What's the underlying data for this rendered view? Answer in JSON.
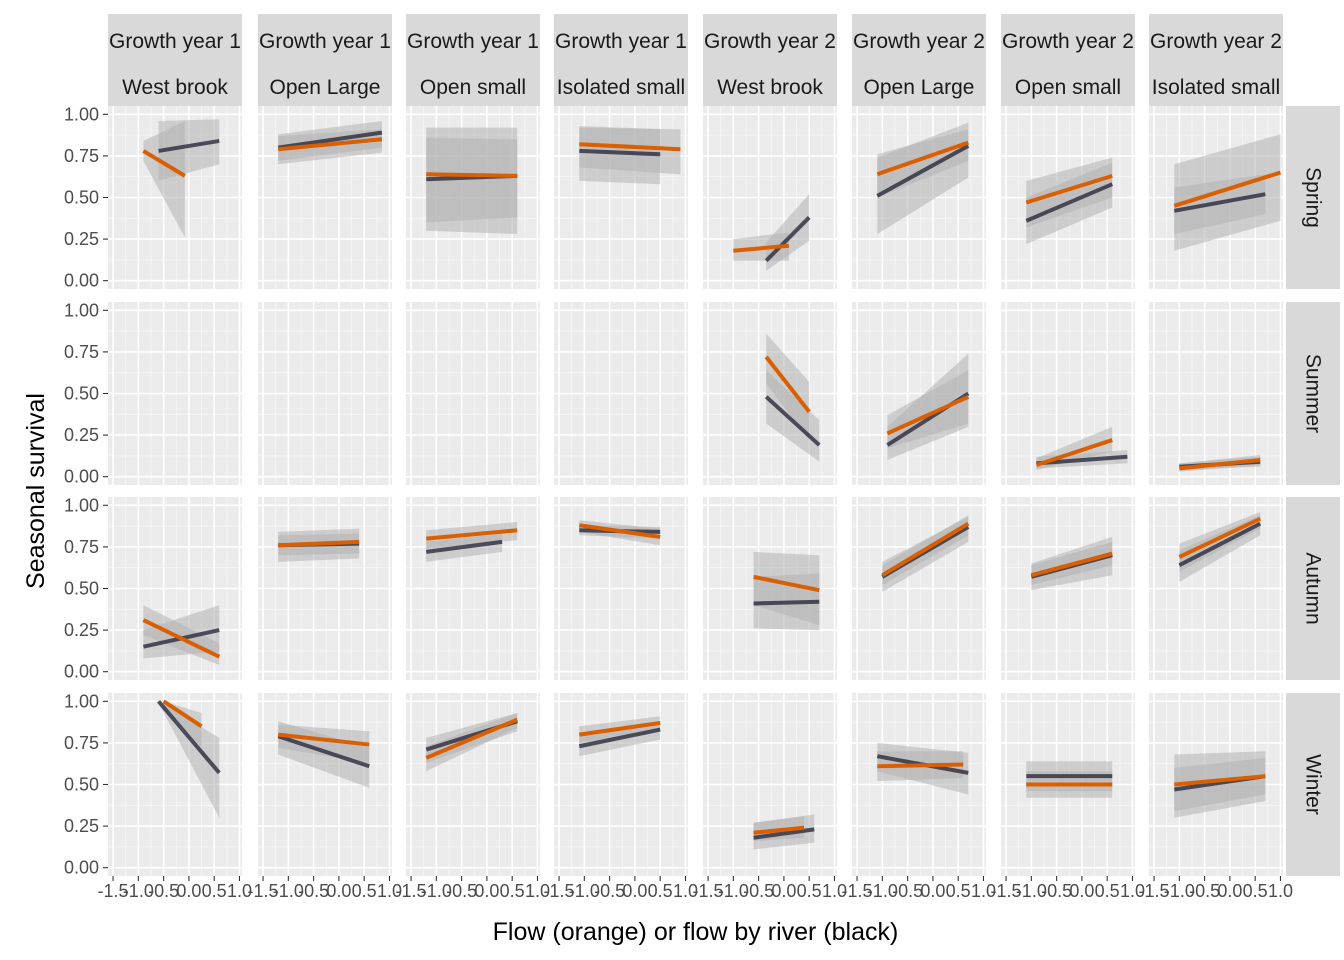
{
  "chart_data": {
    "type": "line",
    "xlabel": "Flow (orange) or flow by river (black)",
    "ylabel": "Seasonal survival",
    "xlim": [
      -1.6,
      1.05
    ],
    "ylim": [
      -0.05,
      1.05
    ],
    "x_ticks": [
      -1.5,
      -1.0,
      -0.5,
      0.0,
      0.5,
      1.0
    ],
    "x_tick_labels": [
      "-1.5",
      "-1.0",
      "-0.5",
      "0.0",
      "0.5",
      "1.0"
    ],
    "y_ticks": [
      0.0,
      0.25,
      0.5,
      0.75,
      1.0
    ],
    "y_tick_labels": [
      "0.00",
      "0.25",
      "0.50",
      "0.75",
      "1.00"
    ],
    "grid": true,
    "colors": {
      "flow": "#d95f02",
      "flow_by_river": "#1f1f33",
      "panel_bg": "#ebebeb",
      "strip_bg": "#d9d9d9",
      "ribbon": "#b3b3b3"
    },
    "columns": [
      {
        "top": "Growth year 1",
        "bottom": "West brook"
      },
      {
        "top": "Growth year 1",
        "bottom": "Open Large"
      },
      {
        "top": "Growth year 1",
        "bottom": "Open small"
      },
      {
        "top": "Growth year 1",
        "bottom": "Isolated small"
      },
      {
        "top": "Growth year 2",
        "bottom": "West brook"
      },
      {
        "top": "Growth year 2",
        "bottom": "Open Large"
      },
      {
        "top": "Growth year 2",
        "bottom": "Open small"
      },
      {
        "top": "Growth year 2",
        "bottom": "Isolated small"
      }
    ],
    "rows": [
      "Spring",
      "Summer",
      "Autumn",
      "Winter"
    ],
    "panels": [
      {
        "row": 0,
        "col": 0,
        "flow": {
          "x": [
            -0.9,
            -0.08
          ],
          "y": [
            0.78,
            0.63
          ],
          "lo": [
            0.72,
            0.26
          ],
          "hi": [
            0.84,
            0.96
          ]
        },
        "river": {
          "x": [
            -0.6,
            0.6
          ],
          "y": [
            0.78,
            0.84
          ],
          "lo": [
            0.6,
            0.7
          ],
          "hi": [
            0.96,
            0.97
          ]
        }
      },
      {
        "row": 0,
        "col": 1,
        "flow": {
          "x": [
            -1.2,
            0.85
          ],
          "y": [
            0.79,
            0.85
          ],
          "lo": [
            0.7,
            0.77
          ],
          "hi": [
            0.87,
            0.91
          ]
        },
        "river": {
          "x": [
            -1.2,
            0.85
          ],
          "y": [
            0.8,
            0.89
          ],
          "lo": [
            0.72,
            0.8
          ],
          "hi": [
            0.88,
            0.96
          ]
        }
      },
      {
        "row": 0,
        "col": 2,
        "flow": {
          "x": [
            -1.2,
            0.6
          ],
          "y": [
            0.64,
            0.63
          ],
          "lo": [
            0.3,
            0.28
          ],
          "hi": [
            0.92,
            0.92
          ]
        },
        "river": {
          "x": [
            -1.2,
            0.6
          ],
          "y": [
            0.61,
            0.63
          ],
          "lo": [
            0.35,
            0.38
          ],
          "hi": [
            0.86,
            0.85
          ]
        }
      },
      {
        "row": 0,
        "col": 3,
        "flow": {
          "x": [
            -1.1,
            0.9
          ],
          "y": [
            0.82,
            0.79
          ],
          "lo": [
            0.68,
            0.64
          ],
          "hi": [
            0.92,
            0.91
          ]
        },
        "river": {
          "x": [
            -1.1,
            0.5
          ],
          "y": [
            0.78,
            0.76
          ],
          "lo": [
            0.6,
            0.58
          ],
          "hi": [
            0.93,
            0.91
          ]
        }
      },
      {
        "row": 0,
        "col": 4,
        "flow": {
          "x": [
            -1.0,
            0.1
          ],
          "y": [
            0.18,
            0.21
          ],
          "lo": [
            0.12,
            0.12
          ],
          "hi": [
            0.25,
            0.29
          ]
        },
        "river": {
          "x": [
            -0.35,
            0.5
          ],
          "y": [
            0.12,
            0.38
          ],
          "lo": [
            0.06,
            0.24
          ],
          "hi": [
            0.23,
            0.52
          ]
        }
      },
      {
        "row": 0,
        "col": 5,
        "flow": {
          "x": [
            -1.1,
            0.7
          ],
          "y": [
            0.64,
            0.83
          ],
          "lo": [
            0.5,
            0.72
          ],
          "hi": [
            0.76,
            0.91
          ]
        },
        "river": {
          "x": [
            -1.1,
            0.7
          ],
          "y": [
            0.51,
            0.81
          ],
          "lo": [
            0.28,
            0.62
          ],
          "hi": [
            0.74,
            0.95
          ]
        }
      },
      {
        "row": 0,
        "col": 6,
        "flow": {
          "x": [
            -1.1,
            0.6
          ],
          "y": [
            0.47,
            0.63
          ],
          "lo": [
            0.32,
            0.5
          ],
          "hi": [
            0.6,
            0.74
          ]
        },
        "river": {
          "x": [
            -1.1,
            0.6
          ],
          "y": [
            0.36,
            0.58
          ],
          "lo": [
            0.22,
            0.44
          ],
          "hi": [
            0.5,
            0.71
          ]
        }
      },
      {
        "row": 0,
        "col": 7,
        "flow": {
          "x": [
            -1.1,
            1.0
          ],
          "y": [
            0.45,
            0.65
          ],
          "lo": [
            0.18,
            0.36
          ],
          "hi": [
            0.7,
            0.88
          ]
        },
        "river": {
          "x": [
            -1.1,
            0.7
          ],
          "y": [
            0.42,
            0.52
          ],
          "lo": [
            0.28,
            0.4
          ],
          "hi": [
            0.56,
            0.64
          ]
        }
      },
      {
        "row": 1,
        "col": 4,
        "flow": {
          "x": [
            -0.35,
            0.5
          ],
          "y": [
            0.72,
            0.39
          ],
          "lo": [
            0.56,
            0.22
          ],
          "hi": [
            0.86,
            0.57
          ]
        },
        "river": {
          "x": [
            -0.35,
            0.7
          ],
          "y": [
            0.48,
            0.19
          ],
          "lo": [
            0.32,
            0.09
          ],
          "hi": [
            0.64,
            0.34
          ]
        }
      },
      {
        "row": 1,
        "col": 5,
        "flow": {
          "x": [
            -0.9,
            0.7
          ],
          "y": [
            0.26,
            0.48
          ],
          "lo": [
            0.17,
            0.32
          ],
          "hi": [
            0.37,
            0.64
          ]
        },
        "river": {
          "x": [
            -0.9,
            0.7
          ],
          "y": [
            0.19,
            0.5
          ],
          "lo": [
            0.1,
            0.3
          ],
          "hi": [
            0.3,
            0.74
          ]
        }
      },
      {
        "row": 1,
        "col": 6,
        "flow": {
          "x": [
            -0.9,
            0.6
          ],
          "y": [
            0.07,
            0.22
          ],
          "lo": [
            0.04,
            0.15
          ],
          "hi": [
            0.11,
            0.3
          ]
        },
        "river": {
          "x": [
            -0.9,
            0.9
          ],
          "y": [
            0.08,
            0.12
          ],
          "lo": [
            0.05,
            0.08
          ],
          "hi": [
            0.12,
            0.16
          ]
        }
      },
      {
        "row": 1,
        "col": 7,
        "flow": {
          "x": [
            -1.0,
            0.6
          ],
          "y": [
            0.05,
            0.1
          ],
          "lo": [
            0.03,
            0.07
          ],
          "hi": [
            0.08,
            0.13
          ]
        },
        "river": {
          "x": [
            -1.0,
            0.6
          ],
          "y": [
            0.06,
            0.09
          ],
          "lo": [
            0.04,
            0.06
          ],
          "hi": [
            0.08,
            0.12
          ]
        }
      },
      {
        "row": 2,
        "col": 0,
        "flow": {
          "x": [
            -0.9,
            0.6
          ],
          "y": [
            0.31,
            0.09
          ],
          "lo": [
            0.22,
            0.04
          ],
          "hi": [
            0.4,
            0.17
          ]
        },
        "river": {
          "x": [
            -0.9,
            0.6
          ],
          "y": [
            0.15,
            0.25
          ],
          "lo": [
            0.08,
            0.12
          ],
          "hi": [
            0.25,
            0.4
          ]
        }
      },
      {
        "row": 2,
        "col": 1,
        "flow": {
          "x": [
            -1.2,
            0.4
          ],
          "y": [
            0.76,
            0.78
          ],
          "lo": [
            0.66,
            0.68
          ],
          "hi": [
            0.84,
            0.86
          ]
        },
        "river": {
          "x": [
            -1.2,
            0.4
          ],
          "y": [
            0.76,
            0.77
          ],
          "lo": [
            0.7,
            0.71
          ],
          "hi": [
            0.82,
            0.83
          ]
        }
      },
      {
        "row": 2,
        "col": 2,
        "flow": {
          "x": [
            -1.2,
            0.6
          ],
          "y": [
            0.8,
            0.85
          ],
          "lo": [
            0.74,
            0.79
          ],
          "hi": [
            0.85,
            0.9
          ]
        },
        "river": {
          "x": [
            -1.2,
            0.3
          ],
          "y": [
            0.72,
            0.78
          ],
          "lo": [
            0.66,
            0.72
          ],
          "hi": [
            0.78,
            0.83
          ]
        }
      },
      {
        "row": 2,
        "col": 3,
        "flow": {
          "x": [
            -1.1,
            0.5
          ],
          "y": [
            0.88,
            0.81
          ],
          "lo": [
            0.84,
            0.76
          ],
          "hi": [
            0.91,
            0.86
          ]
        },
        "river": {
          "x": [
            -1.1,
            0.5
          ],
          "y": [
            0.85,
            0.84
          ],
          "lo": [
            0.82,
            0.8
          ],
          "hi": [
            0.88,
            0.87
          ]
        }
      },
      {
        "row": 2,
        "col": 4,
        "flow": {
          "x": [
            -0.6,
            0.7
          ],
          "y": [
            0.57,
            0.49
          ],
          "lo": [
            0.4,
            0.28
          ],
          "hi": [
            0.72,
            0.7
          ]
        },
        "river": {
          "x": [
            -0.6,
            0.7
          ],
          "y": [
            0.41,
            0.42
          ],
          "lo": [
            0.26,
            0.25
          ],
          "hi": [
            0.57,
            0.59
          ]
        }
      },
      {
        "row": 2,
        "col": 5,
        "flow": {
          "x": [
            -1.0,
            0.7
          ],
          "y": [
            0.58,
            0.89
          ],
          "lo": [
            0.52,
            0.82
          ],
          "hi": [
            0.64,
            0.94
          ]
        },
        "river": {
          "x": [
            -1.0,
            0.7
          ],
          "y": [
            0.57,
            0.87
          ],
          "lo": [
            0.48,
            0.78
          ],
          "hi": [
            0.66,
            0.93
          ]
        }
      },
      {
        "row": 2,
        "col": 6,
        "flow": {
          "x": [
            -1.0,
            0.6
          ],
          "y": [
            0.58,
            0.71
          ],
          "lo": [
            0.52,
            0.64
          ],
          "hi": [
            0.64,
            0.78
          ]
        },
        "river": {
          "x": [
            -1.0,
            0.6
          ],
          "y": [
            0.57,
            0.7
          ],
          "lo": [
            0.49,
            0.58
          ],
          "hi": [
            0.65,
            0.81
          ]
        }
      },
      {
        "row": 2,
        "col": 7,
        "flow": {
          "x": [
            -1.0,
            0.6
          ],
          "y": [
            0.69,
            0.92
          ],
          "lo": [
            0.6,
            0.86
          ],
          "hi": [
            0.77,
            0.96
          ]
        },
        "river": {
          "x": [
            -1.0,
            0.6
          ],
          "y": [
            0.64,
            0.89
          ],
          "lo": [
            0.54,
            0.82
          ],
          "hi": [
            0.73,
            0.94
          ]
        }
      },
      {
        "row": 3,
        "col": 0,
        "flow": {
          "x": [
            -0.5,
            0.25
          ],
          "y": [
            1.0,
            0.85
          ],
          "lo": [
            0.98,
            0.72
          ],
          "hi": [
            1.0,
            0.93
          ]
        },
        "river": {
          "x": [
            -0.6,
            0.6
          ],
          "y": [
            1.0,
            0.57
          ],
          "lo": [
            0.99,
            0.3
          ],
          "hi": [
            1.0,
            0.78
          ]
        }
      },
      {
        "row": 3,
        "col": 1,
        "flow": {
          "x": [
            -1.2,
            0.6
          ],
          "y": [
            0.8,
            0.74
          ],
          "lo": [
            0.72,
            0.63
          ],
          "hi": [
            0.86,
            0.82
          ]
        },
        "river": {
          "x": [
            -1.2,
            0.6
          ],
          "y": [
            0.79,
            0.61
          ],
          "lo": [
            0.68,
            0.48
          ],
          "hi": [
            0.88,
            0.72
          ]
        }
      },
      {
        "row": 3,
        "col": 2,
        "flow": {
          "x": [
            -1.2,
            0.6
          ],
          "y": [
            0.66,
            0.89
          ],
          "lo": [
            0.58,
            0.84
          ],
          "hi": [
            0.73,
            0.93
          ]
        },
        "river": {
          "x": [
            -1.2,
            0.6
          ],
          "y": [
            0.71,
            0.88
          ],
          "lo": [
            0.63,
            0.82
          ],
          "hi": [
            0.78,
            0.93
          ]
        }
      },
      {
        "row": 3,
        "col": 3,
        "flow": {
          "x": [
            -1.1,
            0.5
          ],
          "y": [
            0.8,
            0.87
          ],
          "lo": [
            0.75,
            0.82
          ],
          "hi": [
            0.85,
            0.91
          ]
        },
        "river": {
          "x": [
            -1.1,
            0.5
          ],
          "y": [
            0.73,
            0.83
          ],
          "lo": [
            0.67,
            0.77
          ],
          "hi": [
            0.79,
            0.88
          ]
        }
      },
      {
        "row": 3,
        "col": 4,
        "flow": {
          "x": [
            -0.6,
            0.4
          ],
          "y": [
            0.21,
            0.24
          ],
          "lo": [
            0.16,
            0.18
          ],
          "hi": [
            0.27,
            0.31
          ]
        },
        "river": {
          "x": [
            -0.6,
            0.6
          ],
          "y": [
            0.18,
            0.23
          ],
          "lo": [
            0.11,
            0.15
          ],
          "hi": [
            0.27,
            0.32
          ]
        }
      },
      {
        "row": 3,
        "col": 5,
        "flow": {
          "x": [
            -1.1,
            0.6
          ],
          "y": [
            0.61,
            0.62
          ],
          "lo": [
            0.52,
            0.54
          ],
          "hi": [
            0.7,
            0.7
          ]
        },
        "river": {
          "x": [
            -1.1,
            0.7
          ],
          "y": [
            0.67,
            0.57
          ],
          "lo": [
            0.58,
            0.44
          ],
          "hi": [
            0.75,
            0.69
          ]
        }
      },
      {
        "row": 3,
        "col": 6,
        "flow": {
          "x": [
            -1.1,
            0.6
          ],
          "y": [
            0.5,
            0.5
          ],
          "lo": [
            0.42,
            0.42
          ],
          "hi": [
            0.58,
            0.58
          ]
        },
        "river": {
          "x": [
            -1.1,
            0.6
          ],
          "y": [
            0.55,
            0.55
          ],
          "lo": [
            0.46,
            0.46
          ],
          "hi": [
            0.64,
            0.64
          ]
        }
      },
      {
        "row": 3,
        "col": 7,
        "flow": {
          "x": [
            -1.1,
            0.7
          ],
          "y": [
            0.5,
            0.55
          ],
          "lo": [
            0.3,
            0.4
          ],
          "hi": [
            0.68,
            0.7
          ]
        },
        "river": {
          "x": [
            -1.1,
            0.7
          ],
          "y": [
            0.47,
            0.55
          ],
          "lo": [
            0.34,
            0.44
          ],
          "hi": [
            0.6,
            0.66
          ]
        }
      }
    ]
  }
}
